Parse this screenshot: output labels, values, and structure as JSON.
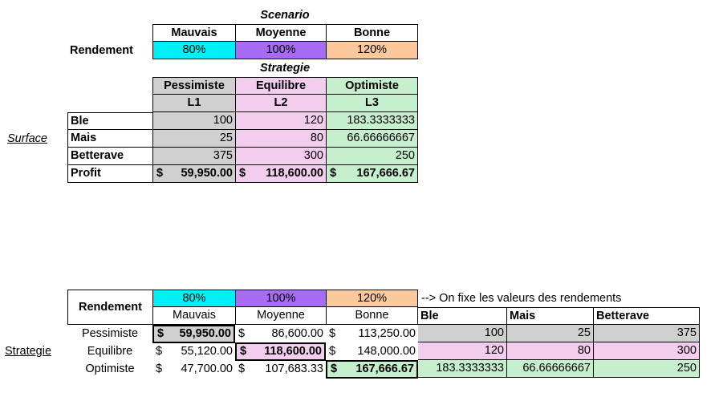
{
  "top": {
    "scenario_title": "Scenario",
    "rendement_label": "Rendement",
    "scenarios": [
      {
        "name": "Mauvais",
        "rate": "80%"
      },
      {
        "name": "Moyenne",
        "rate": "100%"
      },
      {
        "name": "Bonne",
        "rate": "120%"
      }
    ],
    "strategie_title": "Strategie",
    "strategies": [
      {
        "name": "Pessimiste",
        "code": "L1"
      },
      {
        "name": "Equilibre",
        "code": "L2"
      },
      {
        "name": "Optimiste",
        "code": "L3"
      }
    ],
    "surface_label": "Surface",
    "rows": [
      {
        "label": "Ble",
        "values": [
          "100",
          "120",
          "183.3333333"
        ]
      },
      {
        "label": "Mais",
        "values": [
          "25",
          "80",
          "66.66666667"
        ]
      },
      {
        "label": "Betterave",
        "values": [
          "375",
          "300",
          "250"
        ]
      }
    ],
    "profit_label": "Profit",
    "profit_currency": "$",
    "profits": [
      "59,950.00",
      "118,600.00",
      "167,666.67"
    ]
  },
  "bottom": {
    "rendement_label": "Rendement",
    "rates": [
      "80%",
      "100%",
      "120%"
    ],
    "scenarios": [
      "Mauvais",
      "Moyenne",
      "Bonne"
    ],
    "note": "--> On fixe les valeurs des rendements",
    "crops": [
      "Ble",
      "Mais",
      "Betterave"
    ],
    "strategie_label": "Strategie",
    "currency": "$",
    "rows": [
      {
        "label": "Pessimiste",
        "money": [
          "59,950.00",
          "86,600.00",
          "113,250.00"
        ],
        "surfaces": [
          "100",
          "25",
          "375"
        ]
      },
      {
        "label": "Equilibre",
        "money": [
          "55,120.00",
          "118,600.00",
          "148,000.00"
        ],
        "surfaces": [
          "120",
          "80",
          "300"
        ]
      },
      {
        "label": "Optimiste",
        "money": [
          "47,700.00",
          "107,683.33",
          "167,666.67"
        ],
        "surfaces": [
          "183.3333333",
          "66.66666667",
          "250"
        ]
      }
    ]
  }
}
